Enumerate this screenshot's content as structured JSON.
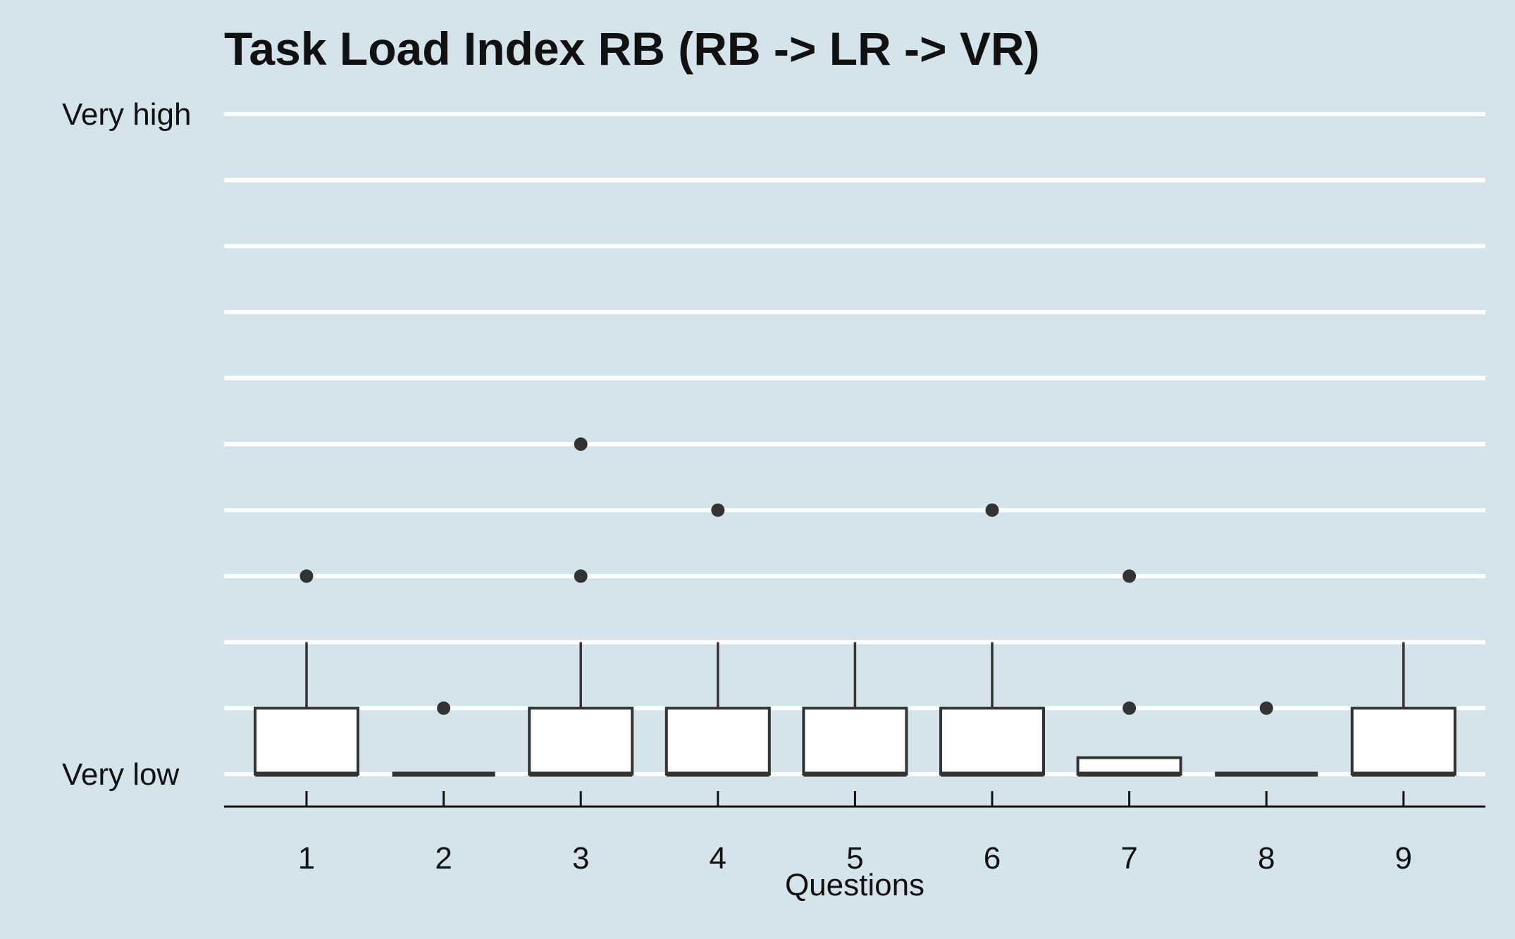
{
  "chart_data": {
    "type": "boxplot",
    "title": "Task Load Index RB (RB -> LR -> VR)",
    "xlabel": "Questions",
    "ylabel": "",
    "ylim": [
      1,
      11
    ],
    "y_tick_labels": [
      {
        "value": 11,
        "label": "Very high"
      },
      {
        "value": 1,
        "label": "Very low"
      }
    ],
    "gridlines": [
      1,
      2,
      3,
      4,
      5,
      6,
      7,
      8,
      9,
      10,
      11
    ],
    "categories": [
      "1",
      "2",
      "3",
      "4",
      "5",
      "6",
      "7",
      "8",
      "9"
    ],
    "boxes": [
      {
        "category": "1",
        "min": 1,
        "q1": 1,
        "median": 1,
        "q3": 2,
        "max": 3,
        "outliers": [
          4
        ]
      },
      {
        "category": "2",
        "min": 1,
        "q1": 1,
        "median": 1,
        "q3": 1,
        "max": 1,
        "outliers": [
          2
        ]
      },
      {
        "category": "3",
        "min": 1,
        "q1": 1,
        "median": 1,
        "q3": 2,
        "max": 3,
        "outliers": [
          4,
          6
        ]
      },
      {
        "category": "4",
        "min": 1,
        "q1": 1,
        "median": 1,
        "q3": 2,
        "max": 3,
        "outliers": [
          5
        ]
      },
      {
        "category": "5",
        "min": 1,
        "q1": 1,
        "median": 1,
        "q3": 2,
        "max": 3,
        "outliers": []
      },
      {
        "category": "6",
        "min": 1,
        "q1": 1,
        "median": 1,
        "q3": 2,
        "max": 3,
        "outliers": [
          5
        ]
      },
      {
        "category": "7",
        "min": 1,
        "q1": 1,
        "median": 1,
        "q3": 1.25,
        "max": 1.25,
        "outliers": [
          2,
          4
        ]
      },
      {
        "category": "8",
        "min": 1,
        "q1": 1,
        "median": 1,
        "q3": 1,
        "max": 1,
        "outliers": [
          2
        ]
      },
      {
        "category": "9",
        "min": 1,
        "q1": 1,
        "median": 1,
        "q3": 2,
        "max": 3,
        "outliers": []
      }
    ],
    "legend": "none",
    "grid": true,
    "colors": {
      "background": "#d5e4eb",
      "gridline": "#ffffff",
      "box_fill": "#ffffff",
      "box_stroke": "#333333",
      "axis": "#111111"
    }
  }
}
